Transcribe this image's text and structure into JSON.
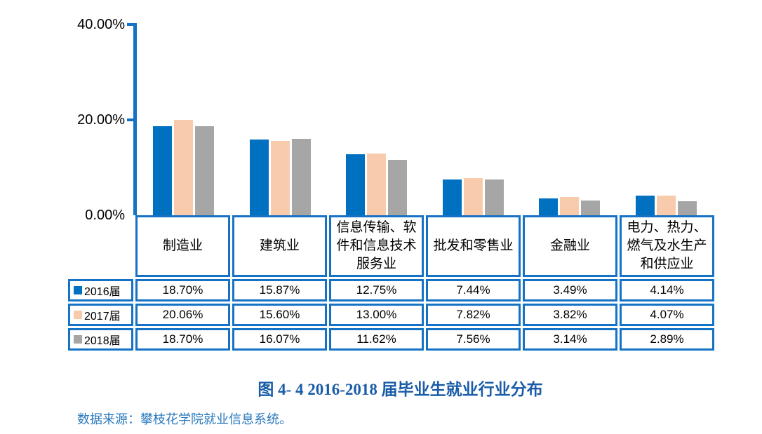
{
  "figure": {
    "caption": "图 4- 4   2016-2018 届毕业生就业行业分布",
    "source_note": "数据来源：攀枝花学院就业信息系统。"
  },
  "chart_data": {
    "type": "bar",
    "title": "图 4- 4   2016-2018 届毕业生就业行业分布",
    "categories": [
      "制造业",
      "建筑业",
      "信息传输、软件和信息技术服务业",
      "批发和零售业",
      "金融业",
      "电力、热力、燃气及水生产和供应业"
    ],
    "series": [
      {
        "name": "2016届",
        "color": "#0070c0",
        "values": [
          18.7,
          15.87,
          12.75,
          7.44,
          3.49,
          4.14
        ],
        "labels": [
          "18.70%",
          "15.87%",
          "12.75%",
          "7.44%",
          "3.49%",
          "4.14%"
        ]
      },
      {
        "name": "2017届",
        "color": "#f8cbad",
        "values": [
          20.06,
          15.6,
          13.0,
          7.82,
          3.82,
          4.07
        ],
        "labels": [
          "20.06%",
          "15.60%",
          "13.00%",
          "7.82%",
          "3.82%",
          "4.07%"
        ]
      },
      {
        "name": "2018届",
        "color": "#a6a6a6",
        "values": [
          18.7,
          16.07,
          11.62,
          7.56,
          3.14,
          2.89
        ],
        "labels": [
          "18.70%",
          "16.07%",
          "11.62%",
          "7.56%",
          "3.14%",
          "2.89%"
        ]
      }
    ],
    "y_axis": {
      "tick_labels": {
        "t40": "40.00%",
        "t20": "20.00%",
        "t0": "0.00%"
      },
      "ylim": [
        0,
        40
      ],
      "grid": false
    },
    "xlabel": "",
    "ylabel": "",
    "legend_position": "data-table-left-column",
    "data_table_shown": true
  },
  "colors": {
    "axis_and_borders": "#1572c4",
    "bar_2016": "#0070c0",
    "bar_2017": "#f8cbad",
    "bar_2018": "#a6a6a6",
    "caption_text": "#1a5ca8",
    "source_text": "#2979bd",
    "table_text": "#000000",
    "background": "#ffffff"
  }
}
